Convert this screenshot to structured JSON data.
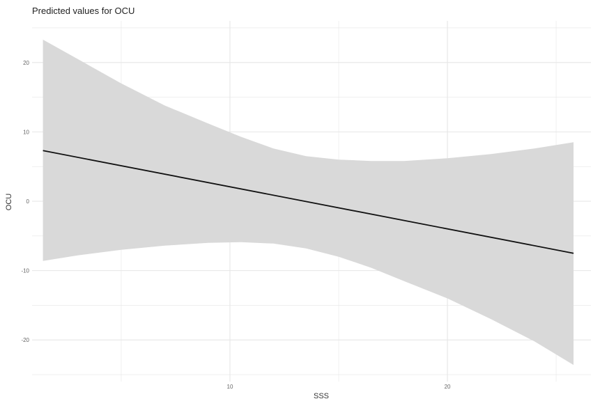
{
  "chart_data": {
    "type": "line",
    "title": "Predicted values for OCU",
    "xlabel": "SSS",
    "ylabel": "OCU",
    "xlim": [
      0.9,
      26.6
    ],
    "ylim": [
      -26,
      26
    ],
    "x_ticks": [
      10,
      20
    ],
    "y_ticks": [
      -20,
      -10,
      0,
      10,
      20
    ],
    "grid": true,
    "series": [
      {
        "x": [
          1.4,
          25.8
        ],
        "y": [
          7.3,
          -7.5
        ]
      }
    ],
    "confidence_band": {
      "x": [
        1.4,
        3,
        5,
        7,
        9,
        10.5,
        12,
        13.5,
        15,
        16.5,
        18,
        20,
        22,
        24,
        25.8
      ],
      "upper": [
        23.3,
        20.5,
        17,
        13.8,
        11.2,
        9.3,
        7.6,
        6.5,
        6.0,
        5.8,
        5.8,
        6.2,
        6.8,
        7.6,
        8.5
      ],
      "lower": [
        -8.6,
        -7.8,
        -7.0,
        -6.4,
        -6.0,
        -5.9,
        -6.1,
        -6.8,
        -8.0,
        -9.6,
        -11.5,
        -14.0,
        -17.0,
        -20.2,
        -23.6
      ]
    },
    "colors": {
      "line": "#111111",
      "band": "#d9d9d9",
      "grid": "#e6e6e6"
    }
  }
}
